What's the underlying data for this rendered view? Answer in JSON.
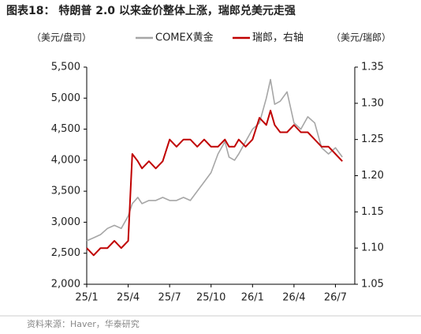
{
  "chart_data": {
    "type": "line",
    "title": "图表18： 特朗普 2.0 以来金价整体上涨，瑞郎兑美元走强",
    "y_label": "（美元/盘司）",
    "y2_label": "（美元/瑞郎）",
    "source": "资料来源：Haver，华泰研究",
    "x": [
      0,
      0.5,
      1,
      1.5,
      2,
      2.5,
      3,
      3.3,
      3.7,
      4,
      4.5,
      5,
      5.5,
      6,
      6.5,
      7,
      7.5,
      8,
      8.5,
      9,
      9.5,
      10,
      10.3,
      10.7,
      11,
      11.5,
      12,
      12.5,
      13,
      13.3,
      13.6,
      14,
      14.5,
      15,
      15.5,
      16,
      16.5,
      17,
      17.5,
      18,
      18.5
    ],
    "xlim": [
      0,
      19.4
    ],
    "xticks": [
      {
        "value": 0,
        "label": "25/1"
      },
      {
        "value": 3,
        "label": "25/4"
      },
      {
        "value": 6,
        "label": "25/7"
      },
      {
        "value": 9,
        "label": "25/10"
      },
      {
        "value": 12,
        "label": "26/1"
      },
      {
        "value": 15,
        "label": "26/4"
      },
      {
        "value": 18,
        "label": "26/7"
      }
    ],
    "ylim": [
      2000,
      5500
    ],
    "yticks": [
      {
        "value": 2000,
        "label": "2,000"
      },
      {
        "value": 2500,
        "label": "2,500"
      },
      {
        "value": 3000,
        "label": "3,000"
      },
      {
        "value": 3500,
        "label": "3,500"
      },
      {
        "value": 4000,
        "label": "4,000"
      },
      {
        "value": 4500,
        "label": "4,500"
      },
      {
        "value": 5000,
        "label": "5,000"
      },
      {
        "value": 5500,
        "label": "5,500"
      }
    ],
    "y2lim": [
      1.05,
      1.35
    ],
    "y2ticks": [
      1.05,
      {
        "value": 1.1,
        "label": "1.10"
      },
      1.15,
      {
        "value": 1.2,
        "label": "1.20"
      },
      1.25,
      {
        "value": 1.3,
        "label": "1.30"
      },
      1.35
    ],
    "series": [
      {
        "name": "COMEX黄金",
        "color": "#a6a6a6",
        "values": [
          2700,
          2750,
          2800,
          2900,
          2950,
          2900,
          3100,
          3300,
          3400,
          3300,
          3350,
          3350,
          3400,
          3350,
          3350,
          3400,
          3350,
          3500,
          3650,
          3800,
          4100,
          4300,
          4050,
          4000,
          4100,
          4300,
          4500,
          4600,
          5000,
          5300,
          4900,
          4950,
          5100,
          4600,
          4500,
          4700,
          4600,
          4200,
          4100,
          4200,
          4050
        ]
      },
      {
        "name": "瑞郎，右轴",
        "color": "#c00000",
        "axis": "y2",
        "values": [
          1.1,
          1.09,
          1.1,
          1.1,
          1.11,
          1.1,
          1.11,
          1.23,
          1.22,
          1.21,
          1.22,
          1.21,
          1.22,
          1.25,
          1.24,
          1.25,
          1.25,
          1.24,
          1.25,
          1.24,
          1.24,
          1.25,
          1.24,
          1.24,
          1.25,
          1.24,
          1.25,
          1.28,
          1.27,
          1.29,
          1.27,
          1.26,
          1.26,
          1.27,
          1.26,
          1.26,
          1.25,
          1.24,
          1.24,
          1.23,
          1.22
        ]
      }
    ]
  }
}
